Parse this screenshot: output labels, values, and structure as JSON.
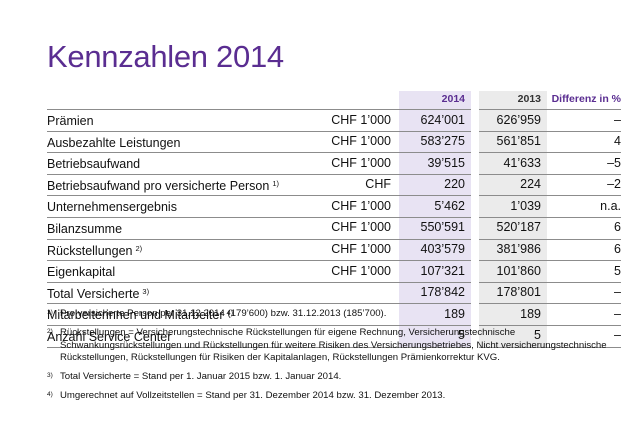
{
  "title": "Kennzahlen 2014",
  "table": {
    "headers": {
      "year_2014": "2014",
      "year_2013": "2013",
      "diff": "Differenz in %"
    },
    "rows": [
      {
        "label": "Prämien",
        "fn": "",
        "unit": "CHF 1’000",
        "v2014": "624’001",
        "v2013": "626’959",
        "diff": "–"
      },
      {
        "label": "Ausbezahlte Leistungen",
        "fn": "",
        "unit": "CHF 1’000",
        "v2014": "583’275",
        "v2013": "561’851",
        "diff": "4"
      },
      {
        "label": "Betriebsaufwand",
        "fn": "",
        "unit": "CHF 1’000",
        "v2014": "39’515",
        "v2013": "41’633",
        "diff": "–5"
      },
      {
        "label": "Betriebsaufwand pro versicherte Person",
        "fn": "1)",
        "unit": "CHF",
        "v2014": "220",
        "v2013": "224",
        "diff": "–2"
      },
      {
        "label": "Unternehmensergebnis",
        "fn": "",
        "unit": "CHF 1’000",
        "v2014": "5’462",
        "v2013": "1’039",
        "diff": "n.a."
      },
      {
        "label": "Bilanzsumme",
        "fn": "",
        "unit": "CHF 1’000",
        "v2014": "550’591",
        "v2013": "520’187",
        "diff": "6"
      },
      {
        "label": "Rückstellungen",
        "fn": "2)",
        "unit": "CHF 1’000",
        "v2014": "403’579",
        "v2013": "381’986",
        "diff": "6"
      },
      {
        "label": "Eigenkapital",
        "fn": "",
        "unit": "CHF 1’000",
        "v2014": "107’321",
        "v2013": "101’860",
        "diff": "5"
      },
      {
        "label": "Total Versicherte",
        "fn": "3)",
        "unit": "",
        "v2014": "178’842",
        "v2013": "178’801",
        "diff": "–"
      },
      {
        "label": "Mitarbeiterinnen und Mitarbeiter",
        "fn": "4)",
        "unit": "",
        "v2014": "189",
        "v2013": "189",
        "diff": "–"
      },
      {
        "label": "Anzahl Service Center",
        "fn": "",
        "unit": "",
        "v2014": "5",
        "v2013": "5",
        "diff": "–"
      }
    ]
  },
  "footnotes": [
    {
      "mark": "1)",
      "text": "Pro versicherte Person per 31.12.2014 (179’600) bzw. 31.12.2013 (185’700)."
    },
    {
      "mark": "2)",
      "text": "Rückstellungen = Versicherungstechnische Rückstellungen für eigene Rechnung, Versicherungstechnische Schwankungsrückstellungen und Rückstellungen für weitere Risiken des Versicherungsbetriebes, Nicht versicherungstechnische Rückstellungen, Rückstellungen für Risiken der Kapitalanlagen, Rückstellungen Prämienkorrektur KVG."
    },
    {
      "mark": "3)",
      "text": "Total Versicherte = Stand per 1. Januar 2015 bzw. 1. Januar 2014."
    },
    {
      "mark": "4)",
      "text": "Umgerechnet auf Vollzeitstellen = Stand per 31. Dezember 2014 bzw. 31. Dezember 2013."
    }
  ],
  "colors": {
    "accent": "#5a2d91",
    "col2014_bg": "#e8e3f3",
    "col2013_bg": "#ebebeb"
  }
}
